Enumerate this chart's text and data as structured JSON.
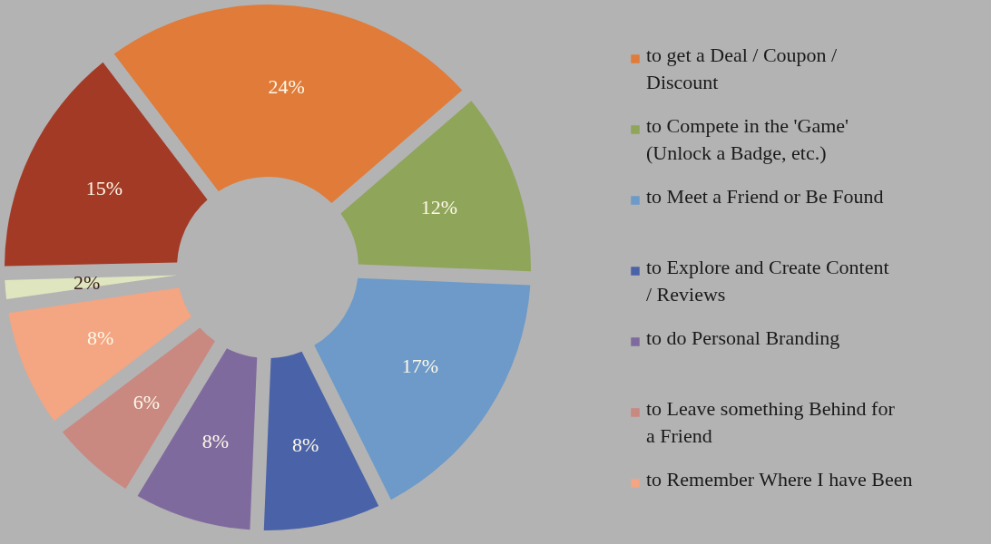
{
  "chart_data": {
    "type": "donut",
    "categories": [
      "to get a Deal / Coupon / Discount",
      "to Compete in the 'Game' (Unlock a Badge, etc.)",
      "to Meet a Friend or Be Found",
      "to Explore and Create Content / Reviews",
      "to do Personal Branding",
      "to Leave something Behind for a Friend",
      "to Remember Where I have Been",
      null,
      null
    ],
    "values": [
      24,
      12,
      17,
      8,
      8,
      6,
      8,
      2,
      15
    ],
    "colors": [
      "#e07b39",
      "#8fa55a",
      "#6d9ac9",
      "#4a62a8",
      "#7f6a9e",
      "#c98880",
      "#f4a582",
      "#dfe6bf",
      "#a33a26"
    ],
    "value_labels": [
      "24%",
      "12%",
      "17%",
      "8%",
      "8%",
      "6%",
      "8%",
      "2%",
      "15%"
    ],
    "legend": "right"
  }
}
